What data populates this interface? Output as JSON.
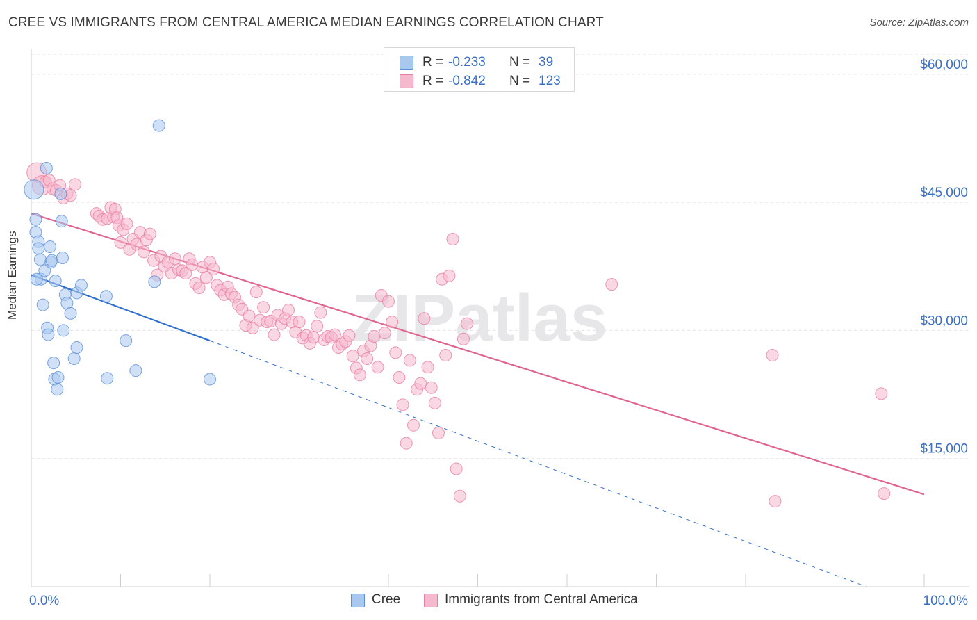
{
  "title": "CREE VS IMMIGRANTS FROM CENTRAL AMERICA MEDIAN EARNINGS CORRELATION CHART",
  "source": "Source: ZipAtlas.com",
  "watermark": "ZIPatlas",
  "legend": {
    "rows": [
      {
        "r_label": "R =",
        "r_value": "-0.233",
        "n_label": "N =",
        "n_value": "39"
      },
      {
        "r_label": "R =",
        "r_value": "-0.842",
        "n_label": "N =",
        "n_value": "123"
      }
    ]
  },
  "bottom_legend": {
    "cree": "Cree",
    "immigrants": "Immigrants from Central America"
  },
  "colors": {
    "cree_fill": "#a9c8f0",
    "cree_stroke": "#5b8fd6",
    "cree_line": "#2f6fcc",
    "imm_fill": "#f6b8cc",
    "imm_stroke": "#e77fa0",
    "imm_line": "#e0648f",
    "axis_label": "#3a6fc4",
    "grid": "#e2e2e2"
  },
  "chart_data": {
    "type": "scatter",
    "title": "CREE VS IMMIGRANTS FROM CENTRAL AMERICA MEDIAN EARNINGS CORRELATION CHART",
    "xlabel": "",
    "ylabel": "Median Earnings",
    "xlim": [
      0,
      100
    ],
    "ylim": [
      0,
      63000
    ],
    "x_tick_labels": [
      "0.0%",
      "100.0%"
    ],
    "y_ticks": [
      15000,
      30000,
      45000,
      60000
    ],
    "y_tick_labels": [
      "$15,000",
      "$30,000",
      "$45,000",
      "$60,000"
    ],
    "grid": true,
    "legend_position": "top-center",
    "series": [
      {
        "name": "Cree",
        "points": [
          [
            0.3,
            46500
          ],
          [
            0.5,
            43000
          ],
          [
            0.5,
            41500
          ],
          [
            0.8,
            40400
          ],
          [
            0.8,
            39600
          ],
          [
            1.0,
            38300
          ],
          [
            1.1,
            36000
          ],
          [
            1.3,
            33000
          ],
          [
            1.5,
            37000
          ],
          [
            1.7,
            49000
          ],
          [
            1.8,
            30300
          ],
          [
            1.9,
            29500
          ],
          [
            2.1,
            39800
          ],
          [
            2.2,
            38000
          ],
          [
            2.3,
            38200
          ],
          [
            2.5,
            26200
          ],
          [
            2.6,
            24300
          ],
          [
            2.7,
            35800
          ],
          [
            2.9,
            23100
          ],
          [
            3.0,
            24500
          ],
          [
            3.3,
            46000
          ],
          [
            3.4,
            42800
          ],
          [
            3.5,
            38500
          ],
          [
            3.6,
            30000
          ],
          [
            3.8,
            34200
          ],
          [
            4.0,
            33200
          ],
          [
            4.4,
            32000
          ],
          [
            4.8,
            26700
          ],
          [
            5.1,
            34400
          ],
          [
            5.1,
            28000
          ],
          [
            5.6,
            35300
          ],
          [
            8.4,
            34000
          ],
          [
            8.5,
            24400
          ],
          [
            10.6,
            28800
          ],
          [
            11.7,
            25300
          ],
          [
            13.8,
            35700
          ],
          [
            14.3,
            54000
          ],
          [
            20.0,
            24300
          ],
          [
            0.6,
            36000
          ]
        ]
      },
      {
        "name": "Immigrants from Central America",
        "points": [
          [
            0.6,
            48500
          ],
          [
            1.2,
            47000
          ],
          [
            1.6,
            47400
          ],
          [
            2.0,
            47600
          ],
          [
            2.4,
            46600
          ],
          [
            2.8,
            46400
          ],
          [
            3.2,
            47000
          ],
          [
            3.6,
            45500
          ],
          [
            4.0,
            46000
          ],
          [
            4.4,
            45800
          ],
          [
            4.9,
            47100
          ],
          [
            7.3,
            43700
          ],
          [
            7.6,
            43400
          ],
          [
            8.0,
            43000
          ],
          [
            8.5,
            43100
          ],
          [
            8.9,
            44400
          ],
          [
            9.2,
            43300
          ],
          [
            9.4,
            44200
          ],
          [
            9.6,
            43200
          ],
          [
            9.8,
            42300
          ],
          [
            10.0,
            40300
          ],
          [
            10.3,
            41800
          ],
          [
            10.7,
            42500
          ],
          [
            11.0,
            39500
          ],
          [
            11.4,
            40700
          ],
          [
            11.8,
            40100
          ],
          [
            12.2,
            41500
          ],
          [
            12.6,
            39200
          ],
          [
            12.9,
            40600
          ],
          [
            13.3,
            41300
          ],
          [
            13.7,
            38200
          ],
          [
            14.1,
            36500
          ],
          [
            14.5,
            38700
          ],
          [
            14.9,
            37500
          ],
          [
            15.3,
            38000
          ],
          [
            15.7,
            36700
          ],
          [
            16.1,
            38400
          ],
          [
            16.5,
            37100
          ],
          [
            16.9,
            37000
          ],
          [
            17.3,
            36700
          ],
          [
            17.7,
            38400
          ],
          [
            18.0,
            37700
          ],
          [
            18.4,
            35500
          ],
          [
            18.8,
            35000
          ],
          [
            19.2,
            37400
          ],
          [
            19.6,
            36200
          ],
          [
            20.0,
            38000
          ],
          [
            20.4,
            37200
          ],
          [
            20.8,
            35300
          ],
          [
            21.2,
            34700
          ],
          [
            21.6,
            34200
          ],
          [
            22.0,
            35100
          ],
          [
            22.4,
            34300
          ],
          [
            22.8,
            33900
          ],
          [
            23.2,
            33000
          ],
          [
            23.6,
            32500
          ],
          [
            24.0,
            30600
          ],
          [
            24.4,
            31700
          ],
          [
            24.8,
            30300
          ],
          [
            25.2,
            34500
          ],
          [
            25.6,
            31200
          ],
          [
            26.0,
            32700
          ],
          [
            26.4,
            31000
          ],
          [
            26.8,
            31100
          ],
          [
            27.2,
            29500
          ],
          [
            27.6,
            31800
          ],
          [
            28.0,
            30800
          ],
          [
            28.4,
            31400
          ],
          [
            28.8,
            32400
          ],
          [
            29.2,
            31000
          ],
          [
            29.6,
            29800
          ],
          [
            30.0,
            31000
          ],
          [
            30.4,
            29100
          ],
          [
            30.8,
            29400
          ],
          [
            31.2,
            28500
          ],
          [
            31.6,
            29200
          ],
          [
            32.0,
            30500
          ],
          [
            32.4,
            32100
          ],
          [
            32.8,
            28900
          ],
          [
            33.2,
            29300
          ],
          [
            33.6,
            29200
          ],
          [
            34.0,
            29500
          ],
          [
            34.4,
            28000
          ],
          [
            34.8,
            28400
          ],
          [
            35.2,
            28700
          ],
          [
            35.6,
            29400
          ],
          [
            36.0,
            27000
          ],
          [
            36.4,
            25600
          ],
          [
            36.8,
            24800
          ],
          [
            37.2,
            27600
          ],
          [
            37.6,
            26700
          ],
          [
            38.0,
            28200
          ],
          [
            38.4,
            29300
          ],
          [
            38.8,
            25700
          ],
          [
            39.2,
            34100
          ],
          [
            39.6,
            29700
          ],
          [
            40.0,
            33400
          ],
          [
            40.4,
            31000
          ],
          [
            40.8,
            27400
          ],
          [
            41.2,
            24500
          ],
          [
            41.6,
            21300
          ],
          [
            42.0,
            16800
          ],
          [
            42.4,
            26500
          ],
          [
            42.8,
            18900
          ],
          [
            43.2,
            23100
          ],
          [
            43.6,
            23800
          ],
          [
            44.0,
            31400
          ],
          [
            44.4,
            25700
          ],
          [
            44.8,
            23300
          ],
          [
            45.2,
            21500
          ],
          [
            45.6,
            18000
          ],
          [
            46.0,
            36000
          ],
          [
            46.4,
            27100
          ],
          [
            46.8,
            36400
          ],
          [
            47.2,
            40700
          ],
          [
            47.6,
            13800
          ],
          [
            48.0,
            10600
          ],
          [
            48.4,
            29000
          ],
          [
            48.8,
            30800
          ],
          [
            65.0,
            35400
          ],
          [
            83.0,
            27100
          ],
          [
            83.3,
            10000
          ],
          [
            95.2,
            22600
          ],
          [
            95.5,
            10900
          ]
        ]
      }
    ],
    "trend_lines": [
      {
        "series": "Cree",
        "solid_from": [
          0,
          36500
        ],
        "solid_to": [
          20,
          28800
        ],
        "dashed_to": [
          93.5,
          0
        ]
      },
      {
        "series": "Immigrants from Central America",
        "from": [
          0,
          43700
        ],
        "to": [
          100,
          10800
        ]
      }
    ]
  }
}
